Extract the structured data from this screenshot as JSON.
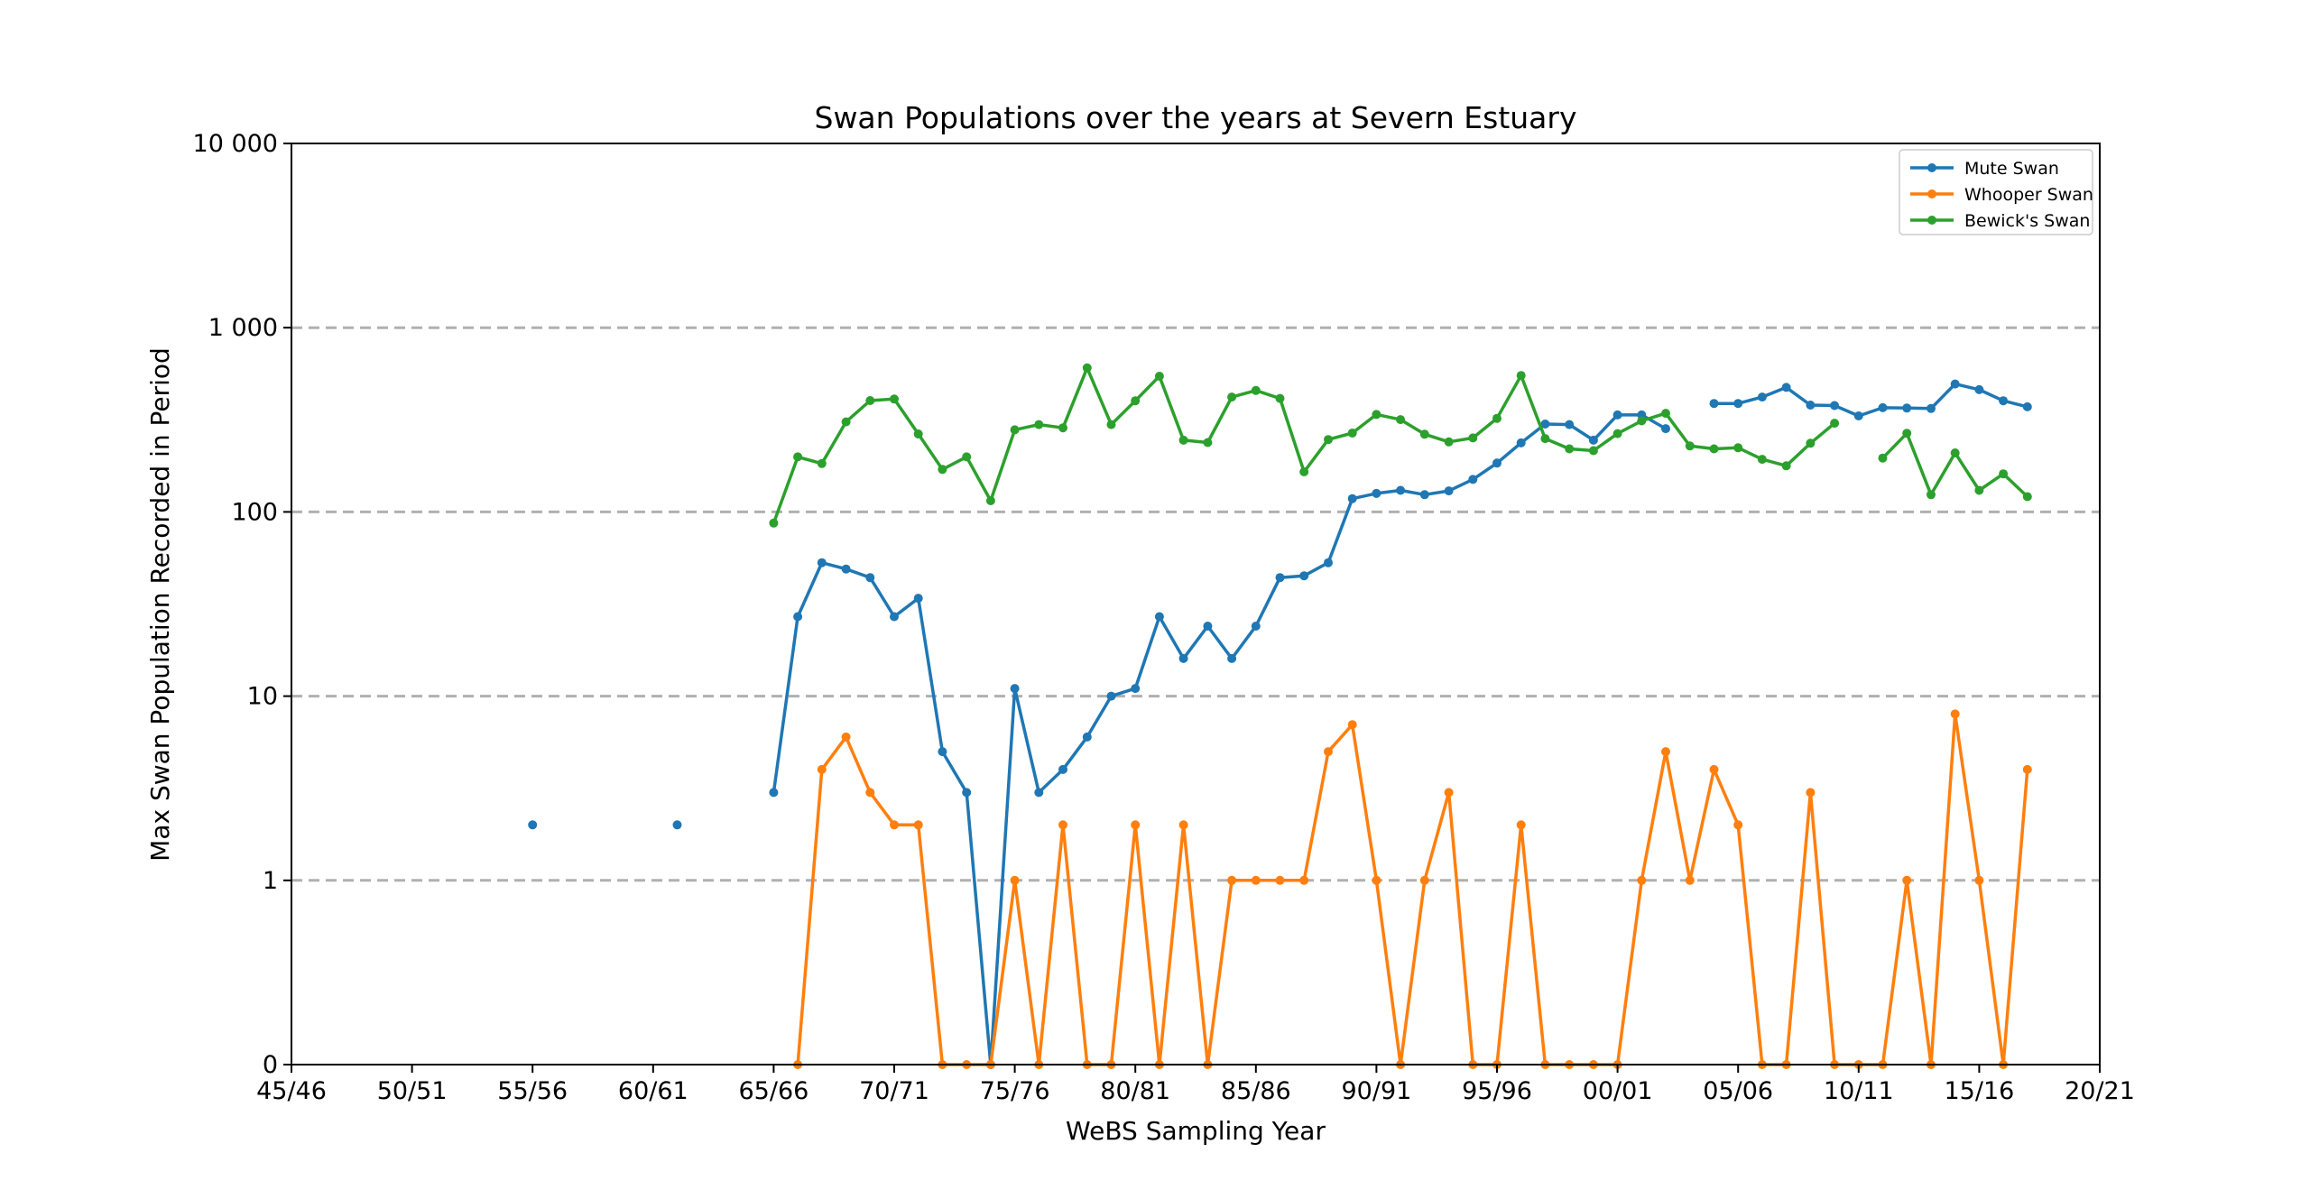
{
  "chart_data": {
    "type": "line",
    "title": "Swan Populations over the years at Severn Estuary",
    "xlabel": "WeBS Sampling Year",
    "ylabel": "Max Swan Population Recorded in Period",
    "y_scale": "symlog",
    "yticks": [
      {
        "value": 0,
        "label": "0"
      },
      {
        "value": 1,
        "label": "1"
      },
      {
        "value": 10,
        "label": "10"
      },
      {
        "value": 100,
        "label": "100"
      },
      {
        "value": 1000,
        "label": "1 000"
      },
      {
        "value": 10000,
        "label": "10 000"
      }
    ],
    "ylim": [
      0,
      10000
    ],
    "xticks": [
      "45/46",
      "50/51",
      "55/56",
      "60/61",
      "65/66",
      "70/71",
      "75/76",
      "80/81",
      "85/86",
      "90/91",
      "95/96",
      "00/01",
      "05/06",
      "10/11",
      "15/16",
      "20/21"
    ],
    "xlim": [
      "45/46",
      "20/21"
    ],
    "grid": "horizontal dashed",
    "legend_position": "top-right",
    "series": [
      {
        "name": "Mute Swan",
        "color": "#1f77b4",
        "points": [
          {
            "x": "55/56",
            "y": 2
          },
          {
            "x": "61/62",
            "y": 2
          },
          {
            "x": "65/66",
            "y": 3
          },
          {
            "x": "66/67",
            "y": 27
          },
          {
            "x": "67/68",
            "y": 53
          },
          {
            "x": "68/69",
            "y": 49
          },
          {
            "x": "69/70",
            "y": 44
          },
          {
            "x": "70/71",
            "y": 27
          },
          {
            "x": "71/72",
            "y": 34
          },
          {
            "x": "72/73",
            "y": 5
          },
          {
            "x": "73/74",
            "y": 3
          },
          {
            "x": "74/75",
            "y": 0
          },
          {
            "x": "75/76",
            "y": 11
          },
          {
            "x": "76/77",
            "y": 3
          },
          {
            "x": "77/78",
            "y": 4
          },
          {
            "x": "78/79",
            "y": 6
          },
          {
            "x": "79/80",
            "y": 10
          },
          {
            "x": "80/81",
            "y": 11
          },
          {
            "x": "81/82",
            "y": 27
          },
          {
            "x": "82/83",
            "y": 16
          },
          {
            "x": "83/84",
            "y": 24
          },
          {
            "x": "84/85",
            "y": 16
          },
          {
            "x": "85/86",
            "y": 24
          },
          {
            "x": "86/87",
            "y": 44
          },
          {
            "x": "87/88",
            "y": 45
          },
          {
            "x": "88/89",
            "y": 53
          },
          {
            "x": "89/90",
            "y": 118
          },
          {
            "x": "90/91",
            "y": 126
          },
          {
            "x": "91/92",
            "y": 131
          },
          {
            "x": "92/93",
            "y": 124
          },
          {
            "x": "93/94",
            "y": 130
          },
          {
            "x": "94/95",
            "y": 150
          },
          {
            "x": "95/96",
            "y": 184
          },
          {
            "x": "96/97",
            "y": 237
          },
          {
            "x": "97/98",
            "y": 300
          },
          {
            "x": "98/99",
            "y": 298
          },
          {
            "x": "99/00",
            "y": 245
          },
          {
            "x": "00/01",
            "y": 336
          },
          {
            "x": "01/02",
            "y": 336
          },
          {
            "x": "02/03",
            "y": 283
          },
          {
            "x": "04/05",
            "y": 388
          },
          {
            "x": "05/06",
            "y": 388
          },
          {
            "x": "06/07",
            "y": 420
          },
          {
            "x": "07/08",
            "y": 474
          },
          {
            "x": "08/09",
            "y": 380
          },
          {
            "x": "09/10",
            "y": 378
          },
          {
            "x": "10/11",
            "y": 332
          },
          {
            "x": "11/12",
            "y": 368
          },
          {
            "x": "12/13",
            "y": 366
          },
          {
            "x": "13/14",
            "y": 364
          },
          {
            "x": "14/15",
            "y": 495
          },
          {
            "x": "15/16",
            "y": 461
          },
          {
            "x": "16/17",
            "y": 401
          },
          {
            "x": "17/18",
            "y": 372
          }
        ]
      },
      {
        "name": "Whooper Swan",
        "color": "#ff7f0e",
        "points": [
          {
            "x": "66/67",
            "y": 0
          },
          {
            "x": "67/68",
            "y": 4
          },
          {
            "x": "68/69",
            "y": 6
          },
          {
            "x": "69/70",
            "y": 3
          },
          {
            "x": "70/71",
            "y": 2
          },
          {
            "x": "71/72",
            "y": 2
          },
          {
            "x": "72/73",
            "y": 0
          },
          {
            "x": "73/74",
            "y": 0
          },
          {
            "x": "74/75",
            "y": 0
          },
          {
            "x": "75/76",
            "y": 1
          },
          {
            "x": "76/77",
            "y": 0
          },
          {
            "x": "77/78",
            "y": 2
          },
          {
            "x": "78/79",
            "y": 0
          },
          {
            "x": "79/80",
            "y": 0
          },
          {
            "x": "80/81",
            "y": 2
          },
          {
            "x": "81/82",
            "y": 0
          },
          {
            "x": "82/83",
            "y": 2
          },
          {
            "x": "83/84",
            "y": 0
          },
          {
            "x": "84/85",
            "y": 1
          },
          {
            "x": "85/86",
            "y": 1
          },
          {
            "x": "86/87",
            "y": 1
          },
          {
            "x": "87/88",
            "y": 1
          },
          {
            "x": "88/89",
            "y": 5
          },
          {
            "x": "89/90",
            "y": 7
          },
          {
            "x": "90/91",
            "y": 1
          },
          {
            "x": "91/92",
            "y": 0
          },
          {
            "x": "92/93",
            "y": 1
          },
          {
            "x": "93/94",
            "y": 3
          },
          {
            "x": "94/95",
            "y": 0
          },
          {
            "x": "95/96",
            "y": 0
          },
          {
            "x": "96/97",
            "y": 2
          },
          {
            "x": "97/98",
            "y": 0
          },
          {
            "x": "98/99",
            "y": 0
          },
          {
            "x": "99/00",
            "y": 0
          },
          {
            "x": "00/01",
            "y": 0
          },
          {
            "x": "01/02",
            "y": 1
          },
          {
            "x": "02/03",
            "y": 5
          },
          {
            "x": "03/04",
            "y": 1
          },
          {
            "x": "04/05",
            "y": 4
          },
          {
            "x": "05/06",
            "y": 2
          },
          {
            "x": "06/07",
            "y": 0
          },
          {
            "x": "07/08",
            "y": 0
          },
          {
            "x": "08/09",
            "y": 3
          },
          {
            "x": "09/10",
            "y": 0
          },
          {
            "x": "10/11",
            "y": 0
          },
          {
            "x": "11/12",
            "y": 0
          },
          {
            "x": "12/13",
            "y": 1
          },
          {
            "x": "13/14",
            "y": 0
          },
          {
            "x": "14/15",
            "y": 8
          },
          {
            "x": "15/16",
            "y": 1
          },
          {
            "x": "16/17",
            "y": 0
          },
          {
            "x": "17/18",
            "y": 4
          }
        ]
      },
      {
        "name": "Bewick's Swan",
        "color": "#2ca02c",
        "points": [
          {
            "x": "65/66",
            "y": 87
          },
          {
            "x": "66/67",
            "y": 199
          },
          {
            "x": "67/68",
            "y": 183
          },
          {
            "x": "68/69",
            "y": 308
          },
          {
            "x": "69/70",
            "y": 402
          },
          {
            "x": "70/71",
            "y": 410
          },
          {
            "x": "71/72",
            "y": 265
          },
          {
            "x": "72/73",
            "y": 170
          },
          {
            "x": "73/74",
            "y": 199
          },
          {
            "x": "74/75",
            "y": 115
          },
          {
            "x": "75/76",
            "y": 279
          },
          {
            "x": "76/77",
            "y": 298
          },
          {
            "x": "77/78",
            "y": 286
          },
          {
            "x": "78/79",
            "y": 605
          },
          {
            "x": "79/80",
            "y": 298
          },
          {
            "x": "80/81",
            "y": 401
          },
          {
            "x": "81/82",
            "y": 545
          },
          {
            "x": "82/83",
            "y": 245
          },
          {
            "x": "83/84",
            "y": 238
          },
          {
            "x": "84/85",
            "y": 420
          },
          {
            "x": "85/86",
            "y": 456
          },
          {
            "x": "86/87",
            "y": 413
          },
          {
            "x": "87/88",
            "y": 165
          },
          {
            "x": "88/89",
            "y": 247
          },
          {
            "x": "89/90",
            "y": 268
          },
          {
            "x": "90/91",
            "y": 338
          },
          {
            "x": "91/92",
            "y": 317
          },
          {
            "x": "92/93",
            "y": 264
          },
          {
            "x": "93/94",
            "y": 240
          },
          {
            "x": "94/95",
            "y": 252
          },
          {
            "x": "95/96",
            "y": 322
          },
          {
            "x": "96/97",
            "y": 550
          },
          {
            "x": "97/98",
            "y": 250
          },
          {
            "x": "98/99",
            "y": 220
          },
          {
            "x": "99/00",
            "y": 215
          },
          {
            "x": "00/01",
            "y": 266
          },
          {
            "x": "01/02",
            "y": 312
          },
          {
            "x": "02/03",
            "y": 343
          },
          {
            "x": "03/04",
            "y": 228
          },
          {
            "x": "04/05",
            "y": 220
          },
          {
            "x": "05/06",
            "y": 223
          },
          {
            "x": "06/07",
            "y": 193
          },
          {
            "x": "07/08",
            "y": 178
          },
          {
            "x": "08/09",
            "y": 236
          },
          {
            "x": "09/10",
            "y": 303
          },
          {
            "x": "11/12",
            "y": 196
          },
          {
            "x": "12/13",
            "y": 267
          },
          {
            "x": "13/14",
            "y": 124
          },
          {
            "x": "14/15",
            "y": 209
          },
          {
            "x": "15/16",
            "y": 131
          },
          {
            "x": "16/17",
            "y": 161
          },
          {
            "x": "17/18",
            "y": 121
          }
        ]
      }
    ]
  }
}
